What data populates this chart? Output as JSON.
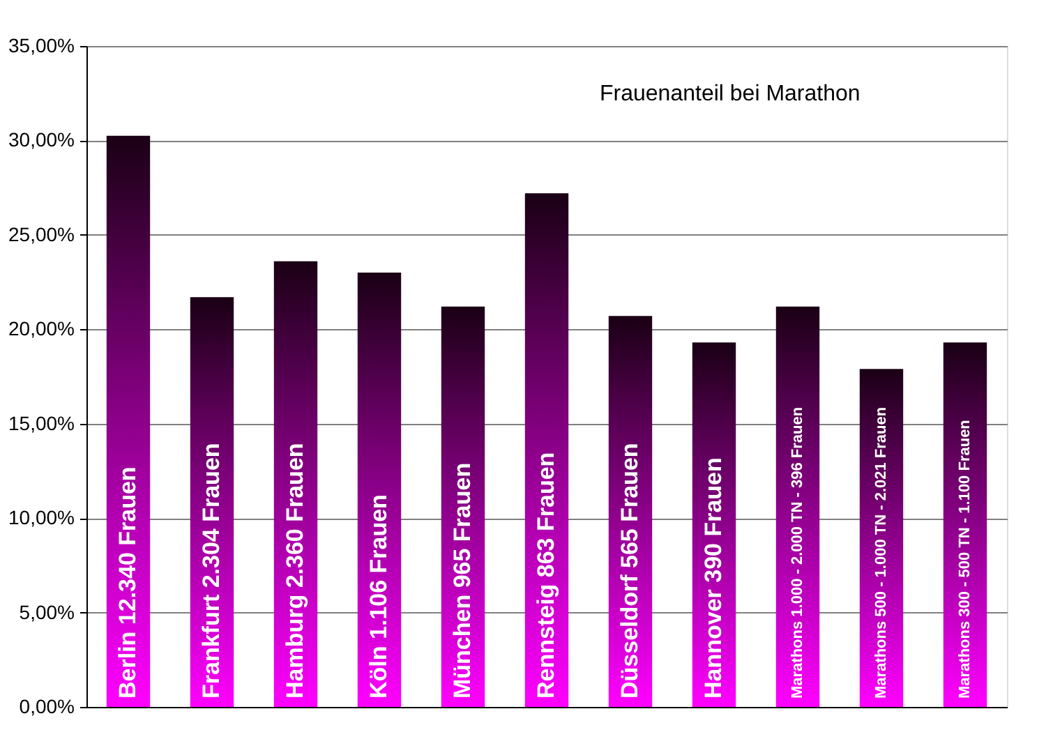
{
  "chart_data": {
    "type": "bar",
    "title": "Frauenanteil bei Marathon",
    "categories": [
      "Berlin 12.340 Frauen",
      "Frankfurt 2.304 Frauen",
      "Hamburg 2.360 Frauen",
      "Köln 1.106 Frauen",
      "München 965 Frauen",
      "Rennsteig 863 Frauen",
      "Düsseldorf 565 Frauen",
      "Hannover 390 Frauen",
      "Marathons 1.000 - 2.000 TN - 396 Frauen",
      "Marathons 500 - 1.000 TN - 2.021 Frauen",
      "Marathons 300 - 500 TN - 1.100 Frauen"
    ],
    "values": [
      30.25,
      21.7,
      23.6,
      23.0,
      21.2,
      27.2,
      20.7,
      19.3,
      21.2,
      17.9,
      19.3
    ],
    "color": "#ff00ff",
    "ylim": [
      0,
      35
    ],
    "yticks": [
      {
        "value": 0,
        "label": "0,00%"
      },
      {
        "value": 5,
        "label": "5,00%"
      },
      {
        "value": 10,
        "label": "10,00%"
      },
      {
        "value": 15,
        "label": "15,00%"
      },
      {
        "value": 20,
        "label": "20,00%"
      },
      {
        "value": 25,
        "label": "25,00%"
      },
      {
        "value": 30,
        "label": "30,00%"
      },
      {
        "value": 35,
        "label": "35,00%"
      }
    ],
    "grid": "y",
    "tick_labels": "y"
  }
}
